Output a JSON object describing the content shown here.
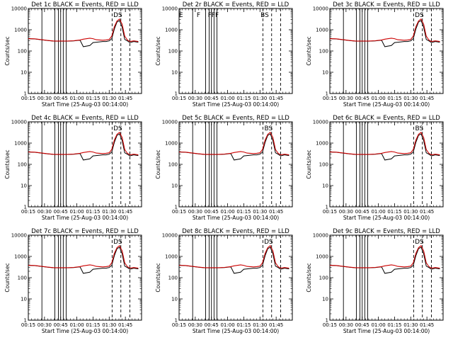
{
  "chart_data": {
    "type": "line",
    "layout": "3x3 grid",
    "ylabel": "Counts/sec",
    "xlabel": "Start Time (25-Aug-03 00:14:00)",
    "x_unit": "minutes after 00:14:00",
    "xlim": [
      1,
      36
    ],
    "yscale": "log",
    "ylim": [
      1,
      10000
    ],
    "x_tick_labels": [
      "00:15",
      "00:30",
      "00:45",
      "01:00",
      "01:15",
      "01:30",
      "01:45"
    ],
    "x_tick_values": [
      1,
      6,
      11,
      16,
      21,
      26,
      31
    ],
    "y_tick_values": [
      1,
      10,
      100,
      1000,
      10000
    ],
    "y_tick_labels": [
      "1",
      "10",
      "100",
      "1000",
      "10000"
    ],
    "series_names": [
      "Events",
      "LLD"
    ],
    "series_colors": {
      "Events": "#000000",
      "LLD": "#cc0000"
    },
    "attenuator_lines_solid": [
      5.2,
      9.2,
      10.3,
      11.0,
      11.8,
      12.7
    ],
    "attenuator_lines_dashed": [
      26.9,
      29.6,
      32.4
    ],
    "shared_curve": {
      "x": [
        1,
        3,
        5,
        7,
        9,
        11,
        13,
        15,
        17,
        18,
        20,
        21,
        22,
        24,
        25,
        26,
        26.8,
        27.6,
        28.4,
        29.2,
        30.0,
        30.8,
        31.6,
        32.4,
        33.6,
        35
      ],
      "events": [
        380,
        370,
        340,
        310,
        290,
        290,
        290,
        300,
        320,
        160,
        180,
        250,
        260,
        280,
        280,
        300,
        380,
        1100,
        2300,
        2700,
        1300,
        350,
        300,
        250,
        280,
        260
      ],
      "lld": [
        380,
        375,
        345,
        315,
        295,
        295,
        295,
        305,
        330,
        360,
        400,
        380,
        340,
        320,
        330,
        350,
        500,
        1400,
        2600,
        3200,
        1800,
        500,
        330,
        280,
        300,
        280
      ]
    },
    "panels": [
      {
        "title": "Det 1c BLACK = Events, RED = LLD",
        "has_data": true,
        "annotations": [
          "DS"
        ]
      },
      {
        "title": "Det 2r BLACK = Events, RED = LLD",
        "has_data": false,
        "annotations": [
          "E",
          "F",
          "FFF",
          "BS"
        ]
      },
      {
        "title": "Det 3c BLACK = Events, RED = LLD",
        "has_data": true,
        "annotations": [
          "DS"
        ]
      },
      {
        "title": "Det 4c BLACK = Events, RED = LLD",
        "has_data": true,
        "annotations": [
          "DS"
        ]
      },
      {
        "title": "Det 5c BLACK = Events, RED = LLD",
        "has_data": true,
        "annotations": [
          "BS"
        ]
      },
      {
        "title": "Det 6c BLACK = Events, RED = LLD",
        "has_data": true,
        "annotations": [
          "BS"
        ]
      },
      {
        "title": "Det 7c BLACK = Events, RED = LLD",
        "has_data": true,
        "annotations": [
          "DS"
        ]
      },
      {
        "title": "Det 8c BLACK = Events, RED = LLD",
        "has_data": true,
        "annotations": [
          "DS"
        ]
      },
      {
        "title": "Det 9c BLACK = Events, RED = LLD",
        "has_data": true,
        "annotations": [
          "DS"
        ]
      }
    ]
  }
}
